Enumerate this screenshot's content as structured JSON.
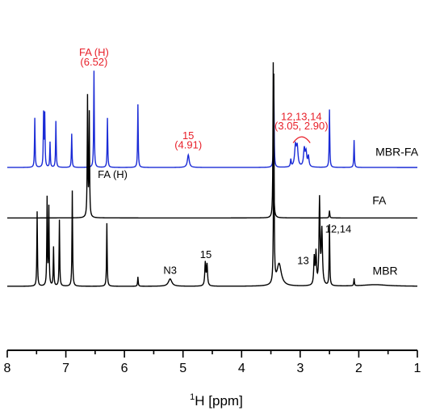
{
  "chart_data": {
    "type": "line",
    "title": "",
    "xlabel_prefix": "1",
    "xlabel": "H [ppm]",
    "ylabel": "",
    "xlim": [
      8,
      1
    ],
    "x_reversed": true,
    "x_ticks": [
      8,
      7,
      6,
      5,
      4,
      3,
      2,
      1
    ],
    "grid": false,
    "legend": "none",
    "colors": {
      "blue": "#1a2bd6",
      "black": "#000000",
      "red": "#e8202a"
    },
    "series": [
      {
        "name": "MBR-FA",
        "color": "#1a2bd6",
        "baseline": 0,
        "peaks": [
          {
            "ppm": 7.53,
            "height": 0.47,
            "width": 0.006
          },
          {
            "ppm": 7.38,
            "height": 0.5,
            "width": 0.006
          },
          {
            "ppm": 7.36,
            "height": 0.49,
            "width": 0.006
          },
          {
            "ppm": 7.27,
            "height": 0.24,
            "width": 0.006
          },
          {
            "ppm": 7.17,
            "height": 0.44,
            "width": 0.006
          },
          {
            "ppm": 6.9,
            "height": 0.32,
            "width": 0.006
          },
          {
            "ppm": 6.52,
            "height": 0.92,
            "width": 0.006
          },
          {
            "ppm": 6.29,
            "height": 0.47,
            "width": 0.006
          },
          {
            "ppm": 5.77,
            "height": 0.6,
            "width": 0.006
          },
          {
            "ppm": 4.91,
            "height": 0.12,
            "width": 0.018
          },
          {
            "ppm": 3.45,
            "height": 0.78,
            "width": 0.006
          },
          {
            "ppm": 3.16,
            "height": 0.07,
            "width": 0.008
          },
          {
            "ppm": 3.08,
            "height": 0.2,
            "width": 0.018
          },
          {
            "ppm": 3.05,
            "height": 0.17,
            "width": 0.015
          },
          {
            "ppm": 2.93,
            "height": 0.17,
            "width": 0.015
          },
          {
            "ppm": 2.9,
            "height": 0.13,
            "width": 0.014
          },
          {
            "ppm": 2.86,
            "height": 0.1,
            "width": 0.012
          },
          {
            "ppm": 2.5,
            "height": 0.55,
            "width": 0.006
          },
          {
            "ppm": 2.08,
            "height": 0.26,
            "width": 0.006
          }
        ]
      },
      {
        "name": "FA",
        "color": "#000000",
        "baseline": -0.48,
        "peaks": [
          {
            "ppm": 6.63,
            "height": 1.14,
            "width": 0.006
          },
          {
            "ppm": 6.6,
            "height": 0.98,
            "width": 0.006
          },
          {
            "ppm": 3.46,
            "height": 1.48,
            "width": 0.006
          },
          {
            "ppm": 2.5,
            "height": 0.07,
            "width": 0.006
          }
        ]
      },
      {
        "name": "MBR",
        "color": "#000000",
        "baseline": -1.13,
        "peaks": [
          {
            "ppm": 7.49,
            "height": 0.71,
            "width": 0.006
          },
          {
            "ppm": 7.32,
            "height": 0.83,
            "width": 0.006
          },
          {
            "ppm": 7.29,
            "height": 0.74,
            "width": 0.006
          },
          {
            "ppm": 7.21,
            "height": 0.37,
            "width": 0.006
          },
          {
            "ppm": 7.11,
            "height": 0.63,
            "width": 0.006
          },
          {
            "ppm": 6.89,
            "height": 0.91,
            "width": 0.006
          },
          {
            "ppm": 6.3,
            "height": 0.6,
            "width": 0.006
          },
          {
            "ppm": 5.77,
            "height": 0.09,
            "width": 0.006
          },
          {
            "ppm": 5.22,
            "height": 0.07,
            "width": 0.035
          },
          {
            "ppm": 4.62,
            "height": 0.22,
            "width": 0.01
          },
          {
            "ppm": 4.59,
            "height": 0.2,
            "width": 0.01
          },
          {
            "ppm": 3.45,
            "height": 1.98,
            "width": 0.006
          },
          {
            "ppm": 3.36,
            "height": 0.21,
            "width": 0.045
          },
          {
            "ppm": 2.76,
            "height": 0.26,
            "width": 0.01
          },
          {
            "ppm": 2.73,
            "height": 0.3,
            "width": 0.01
          },
          {
            "ppm": 2.67,
            "height": 0.81,
            "width": 0.01
          },
          {
            "ppm": 2.63,
            "height": 0.52,
            "width": 0.012
          },
          {
            "ppm": 2.5,
            "height": 0.58,
            "width": 0.006
          },
          {
            "ppm": 2.08,
            "height": 0.07,
            "width": 0.006
          },
          {
            "ppm": 1.72,
            "height": 0.015,
            "width": 0.25
          }
        ]
      }
    ],
    "annotations": [
      {
        "text": "FA (H)",
        "ppm": 6.52,
        "level": 1.06,
        "color": "#e8202a"
      },
      {
        "text": "(6.52)",
        "ppm": 6.52,
        "level": 0.97,
        "color": "#e8202a"
      },
      {
        "text": "15",
        "ppm": 4.91,
        "level": 0.27,
        "color": "#e8202a"
      },
      {
        "text": "(4.91)",
        "ppm": 4.91,
        "level": 0.18,
        "color": "#e8202a"
      },
      {
        "text": "12,13,14",
        "ppm": 2.98,
        "level": 0.45,
        "color": "#e8202a"
      },
      {
        "text": "(3.05, 2.90)",
        "ppm": 2.98,
        "level": 0.36,
        "color": "#e8202a"
      },
      {
        "text": "FA (H)",
        "ppm": 6.2,
        "level": -0.1,
        "color": "#000000"
      },
      {
        "text": "12,14",
        "ppm": 2.35,
        "level": -0.62,
        "color": "#000000"
      },
      {
        "text": "13",
        "ppm": 2.95,
        "level": -0.92,
        "color": "#000000"
      },
      {
        "text": "N3",
        "ppm": 5.22,
        "level": -1.01,
        "color": "#000000"
      },
      {
        "text": "15",
        "ppm": 4.61,
        "level": -0.86,
        "color": "#000000"
      }
    ],
    "series_labels": [
      {
        "text": "MBR-FA",
        "ppm": 1.35,
        "level": 0.11,
        "color": "#000000"
      },
      {
        "text": "FA",
        "ppm": 1.65,
        "level": -0.35,
        "color": "#000000"
      },
      {
        "text": "MBR",
        "ppm": 1.55,
        "level": -1.02,
        "color": "#000000"
      }
    ],
    "bracket": {
      "from_ppm": 3.12,
      "to_ppm": 2.83,
      "level": 0.28,
      "color": "#e8202a"
    }
  }
}
